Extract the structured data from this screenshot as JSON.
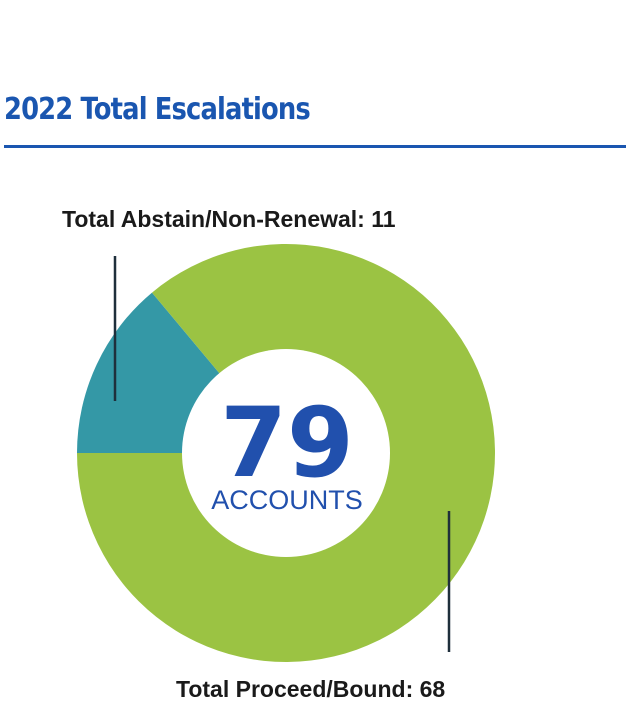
{
  "page": {
    "heading": "2022 Total Escalations",
    "accent_color": "#1a56b0"
  },
  "chart_data": {
    "type": "pie",
    "style": "donut",
    "center_value": "79",
    "center_label": "ACCOUNTS",
    "center_color": "#2150ad",
    "slices": [
      {
        "label": "Total Abstain/Non-Renewal: 11",
        "value": 11,
        "color": "#3498a6"
      },
      {
        "label": "Total Proceed/Bound: 68",
        "value": 68,
        "color": "#9bc343"
      }
    ],
    "leader_color": "#1f2f3b"
  }
}
